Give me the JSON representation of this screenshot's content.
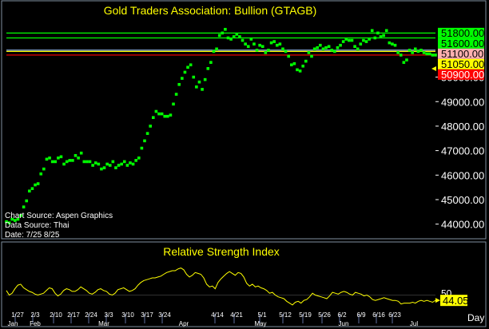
{
  "chart_data": [
    {
      "type": "scatter",
      "title": "Gold Traders Association: Bullion (GTAGB)",
      "series_color": "#00ff00",
      "ylim": [
        43500,
        52300
      ],
      "y_ticks": [
        "44000.00",
        "45000.00",
        "46000.00",
        "47000.00",
        "48000.00",
        "49000.00",
        "50000.00"
      ],
      "source_lines": [
        "Chart Source: Aspen Graphics",
        "Data Source: Thai",
        "Date: 7/25  8/25"
      ],
      "reference_lines": [
        {
          "value": 51800,
          "label": "51800.00",
          "color": "#00ff00",
          "label_bg": "#00ff00",
          "label_fg": "#000000"
        },
        {
          "value": 51600,
          "label": "51600.00",
          "color": "#00ff00",
          "label_bg": "#00ff00",
          "label_fg": "#000000"
        },
        {
          "value": 51100,
          "label": "51100.00",
          "color": "#a0c8ff",
          "label_bg": "#ffb0b0",
          "label_fg": "#000000"
        },
        {
          "value": 51050,
          "label": "51050.00",
          "color": "#ffff00",
          "label_bg": "#ffff00",
          "label_fg": "#000000"
        },
        {
          "value": 50900,
          "label": "50900.00",
          "color": "#ff0000",
          "label_bg": "#ff0000",
          "label_fg": "#ffffff"
        }
      ],
      "y": [
        44100,
        44050,
        44200,
        44150,
        44200,
        44350,
        44700,
        44950,
        45350,
        45450,
        45600,
        45650,
        46050,
        46250,
        46650,
        46700,
        46550,
        46550,
        46700,
        46750,
        46450,
        46550,
        46600,
        46600,
        46800,
        46700,
        46900,
        46550,
        46550,
        46550,
        46400,
        46500,
        46450,
        46250,
        46300,
        46450,
        46400,
        46550,
        46300,
        46400,
        46450,
        46550,
        46400,
        46500,
        46450,
        46600,
        46700,
        47100,
        47400,
        47700,
        48000,
        48350,
        48600,
        48500,
        48500,
        48400,
        48400,
        48450,
        48900,
        49300,
        49700,
        49950,
        50200,
        50400,
        50500,
        50000,
        49600,
        49800,
        49500,
        49900,
        50350,
        50600,
        51050,
        51150,
        51700,
        51800,
        51950,
        51600,
        51550,
        51650,
        51750,
        51650,
        51500,
        51350,
        51250,
        51550,
        51350,
        51100,
        51300,
        51250,
        51000,
        51100,
        51400,
        51450,
        51300,
        51350,
        51150,
        51050,
        50850,
        50500,
        50550,
        50300,
        50250,
        50450,
        50650,
        51000,
        50850,
        51150,
        51200,
        51300,
        51150,
        51200,
        51250,
        51100,
        51050,
        51200,
        51300,
        51450,
        51550,
        51500,
        51500,
        51250,
        51150,
        51350,
        51500,
        51450,
        51550,
        51900,
        51600,
        51800,
        51650,
        51700,
        51900,
        51400,
        51350,
        51300,
        51000,
        50900,
        50600,
        50700,
        51100,
        51000,
        51150,
        51050,
        51100,
        51000,
        50950,
        50950,
        50900,
        50900
      ]
    },
    {
      "type": "line",
      "title": "Relative Strength Index",
      "series_color": "#ffff00",
      "ylim": [
        0,
        100
      ],
      "reference_value": 50,
      "reference_label": "50",
      "current_label": "44.05",
      "y": [
        55,
        50,
        52,
        57,
        61,
        62,
        58,
        56,
        54,
        53,
        51,
        50,
        51,
        52,
        55,
        58,
        57,
        52,
        49,
        51,
        55,
        57,
        56,
        54,
        54,
        56,
        59,
        57,
        55,
        52,
        51,
        53,
        56,
        57,
        55,
        54,
        51,
        50,
        52,
        56,
        57,
        58,
        56,
        54,
        55,
        57,
        61,
        64,
        66,
        67,
        68,
        69,
        69,
        70,
        71,
        73,
        75,
        76,
        77,
        77,
        79,
        80,
        78,
        73,
        70,
        72,
        75,
        74,
        73,
        69,
        62,
        59,
        60,
        57,
        64,
        68,
        71,
        74,
        76,
        74,
        72,
        75,
        74,
        70,
        63,
        60,
        62,
        59,
        60,
        58,
        57,
        55,
        52,
        53,
        50,
        48,
        47,
        46,
        43,
        41,
        39,
        42,
        43,
        41,
        44,
        45,
        48,
        52,
        50,
        49,
        48,
        47,
        46,
        49,
        53,
        52,
        51,
        53,
        54,
        53,
        51,
        50,
        53,
        52,
        51,
        49,
        50,
        48,
        45,
        44,
        45,
        46,
        47,
        46,
        45,
        44,
        44,
        43,
        40,
        41,
        41,
        41,
        42,
        41,
        43,
        44,
        43,
        44,
        43,
        42,
        44.05
      ]
    }
  ],
  "x_labels": [
    "1/27",
    "2/3",
    "2/10",
    "2/17",
    "2/24",
    "3/3",
    "3/10",
    "3/17",
    "3/24",
    "4/14",
    "4/21",
    "5/1",
    "5/12",
    "5/19",
    "5/26",
    "6/2",
    "6/9",
    "6/16",
    "6/23"
  ],
  "x_sub_labels": [
    "Jan",
    "Feb",
    "Mar",
    "Apr",
    "May",
    "Jun",
    "Jul"
  ],
  "day_label": "Day"
}
